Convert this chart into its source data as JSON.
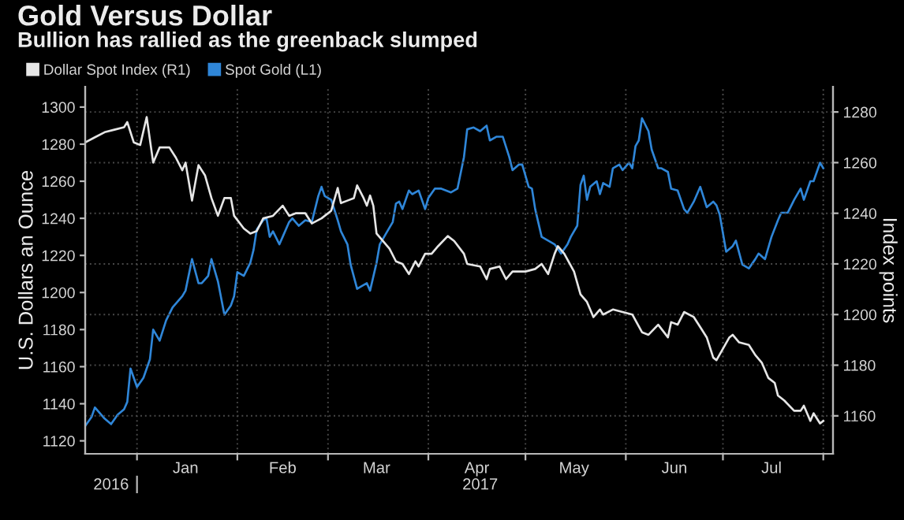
{
  "chart_data": {
    "type": "line",
    "title": "Gold Versus Dollar",
    "subtitle": "Bullion has rallied as the greenback slumped",
    "ylabel": "U.S. Dollars an Ounce",
    "y2label": "Index points",
    "legend": "top left",
    "grid": true,
    "xlim": [
      "2016-12-16",
      "2017-08-04"
    ],
    "xticks": [
      {
        "value": "2017-01-01",
        "label": null
      },
      {
        "value": "2017-01-16",
        "label": "Jan"
      },
      {
        "value": "2017-02-01",
        "label": null
      },
      {
        "value": "2017-02-15",
        "label": "Feb"
      },
      {
        "value": "2017-03-01",
        "label": null
      },
      {
        "value": "2017-03-16",
        "label": "Mar"
      },
      {
        "value": "2017-04-01",
        "label": null
      },
      {
        "value": "2017-04-16",
        "label": "Apr"
      },
      {
        "value": "2017-05-01",
        "label": null
      },
      {
        "value": "2017-05-16",
        "label": "May"
      },
      {
        "value": "2017-06-01",
        "label": null
      },
      {
        "value": "2017-06-16",
        "label": "Jun"
      },
      {
        "value": "2017-07-01",
        "label": null
      },
      {
        "value": "2017-07-16",
        "label": "Jul"
      },
      {
        "value": "2017-08-01",
        "label": null
      }
    ],
    "x2lim": [
      "2016-12-16",
      "2017-08-04"
    ],
    "x2ticks": [
      {
        "value": "2016-12-24",
        "label": "2016"
      },
      {
        "value": "2017-01-01",
        "label": null
      },
      {
        "value": "2017-04-17",
        "label": "2017"
      }
    ],
    "ylim": [
      1113,
      1311
    ],
    "yticks": [
      1120,
      1140,
      1160,
      1180,
      1200,
      1220,
      1240,
      1260,
      1280,
      1300
    ],
    "y2lim": [
      1145,
      1290
    ],
    "y2ticks": [
      1160,
      1180,
      1200,
      1220,
      1240,
      1260,
      1280
    ],
    "series": [
      {
        "name": "Dollar Spot Index (R1)",
        "color": "#e6e6e6",
        "axis": "y2",
        "x": [
          "2016-12-16",
          "2016-12-19",
          "2016-12-22",
          "2016-12-25",
          "2016-12-28",
          "2016-12-29",
          "2016-12-31",
          "2017-01-02",
          "2017-01-04",
          "2017-01-06",
          "2017-01-08",
          "2017-01-11",
          "2017-01-13",
          "2017-01-15",
          "2017-01-16",
          "2017-01-18",
          "2017-01-20",
          "2017-01-22",
          "2017-01-24",
          "2017-01-26",
          "2017-01-28",
          "2017-01-30",
          "2017-01-31",
          "2017-02-03",
          "2017-02-05",
          "2017-02-07",
          "2017-02-09",
          "2017-02-12",
          "2017-02-15",
          "2017-02-17",
          "2017-02-19",
          "2017-02-22",
          "2017-02-24",
          "2017-02-27",
          "2017-03-02",
          "2017-03-04",
          "2017-03-05",
          "2017-03-07",
          "2017-03-09",
          "2017-03-10",
          "2017-03-12",
          "2017-03-13",
          "2017-03-14",
          "2017-03-15",
          "2017-03-16",
          "2017-03-20",
          "2017-03-22",
          "2017-03-24",
          "2017-03-26",
          "2017-03-28",
          "2017-03-29",
          "2017-03-31",
          "2017-04-02",
          "2017-04-04",
          "2017-04-07",
          "2017-04-09",
          "2017-04-12",
          "2017-04-13",
          "2017-04-17",
          "2017-04-19",
          "2017-04-20",
          "2017-04-23",
          "2017-04-25",
          "2017-04-27",
          "2017-05-01",
          "2017-05-04",
          "2017-05-06",
          "2017-05-08",
          "2017-05-10",
          "2017-05-11",
          "2017-05-13",
          "2017-05-16",
          "2017-05-18",
          "2017-05-20",
          "2017-05-22",
          "2017-05-24",
          "2017-05-25",
          "2017-05-28",
          "2017-05-31",
          "2017-06-03",
          "2017-06-06",
          "2017-06-08",
          "2017-06-11",
          "2017-06-14",
          "2017-06-15",
          "2017-06-17",
          "2017-06-19",
          "2017-06-22",
          "2017-06-24",
          "2017-06-26",
          "2017-06-28",
          "2017-06-29",
          "2017-07-03",
          "2017-07-04",
          "2017-07-06",
          "2017-07-09",
          "2017-07-11",
          "2017-07-13",
          "2017-07-15",
          "2017-07-17",
          "2017-07-18",
          "2017-07-20",
          "2017-07-23",
          "2017-07-25",
          "2017-07-26",
          "2017-07-28",
          "2017-07-29",
          "2017-07-31",
          "2017-08-01"
        ],
        "values": [
          1268,
          1270,
          1272,
          1273,
          1274,
          1276,
          1268,
          1267,
          1278,
          1260,
          1266,
          1266,
          1262,
          1257,
          1260,
          1245,
          1259,
          1255,
          1246,
          1239,
          1246,
          1246,
          1239,
          1234,
          1232,
          1233,
          1238,
          1239,
          1243,
          1239,
          1240,
          1240,
          1236,
          1238,
          1241,
          1250,
          1244,
          1245,
          1246,
          1251,
          1246,
          1243,
          1247,
          1243,
          1232,
          1226,
          1221,
          1220,
          1216,
          1221,
          1219,
          1224,
          1224,
          1227,
          1231,
          1229,
          1224,
          1220,
          1219,
          1214,
          1218,
          1219,
          1214,
          1217,
          1217,
          1218,
          1220,
          1216,
          1224,
          1227,
          1224,
          1217,
          1208,
          1205,
          1199,
          1202,
          1200,
          1202,
          1201,
          1200,
          1193,
          1192,
          1196,
          1191,
          1197,
          1196,
          1201,
          1199,
          1195,
          1191,
          1183,
          1182,
          1191,
          1192,
          1189,
          1188,
          1184,
          1181,
          1175,
          1173,
          1168,
          1166,
          1162,
          1162,
          1164,
          1158,
          1161,
          1157,
          1158
        ]
      },
      {
        "name": "Spot Gold (L1)",
        "color": "#2f86d8",
        "x": [
          "2016-12-16",
          "2016-12-18",
          "2016-12-19",
          "2016-12-21",
          "2016-12-22",
          "2016-12-24",
          "2016-12-26",
          "2016-12-28",
          "2016-12-29",
          "2016-12-30",
          "2017-01-01",
          "2017-01-03",
          "2017-01-05",
          "2017-01-06",
          "2017-01-08",
          "2017-01-10",
          "2017-01-12",
          "2017-01-15",
          "2017-01-16",
          "2017-01-18",
          "2017-01-20",
          "2017-01-21",
          "2017-01-23",
          "2017-01-24",
          "2017-01-26",
          "2017-01-28",
          "2017-01-30",
          "2017-01-31",
          "2017-02-01",
          "2017-02-03",
          "2017-02-05",
          "2017-02-06",
          "2017-02-07",
          "2017-02-09",
          "2017-02-10",
          "2017-02-11",
          "2017-02-12",
          "2017-02-14",
          "2017-02-15",
          "2017-02-17",
          "2017-02-18",
          "2017-02-20",
          "2017-02-22",
          "2017-02-24",
          "2017-02-26",
          "2017-02-27",
          "2017-02-28",
          "2017-03-02",
          "2017-03-04",
          "2017-03-05",
          "2017-03-07",
          "2017-03-08",
          "2017-03-10",
          "2017-03-11",
          "2017-03-13",
          "2017-03-14",
          "2017-03-16",
          "2017-03-17",
          "2017-03-19",
          "2017-03-21",
          "2017-03-22",
          "2017-03-23",
          "2017-03-24",
          "2017-03-26",
          "2017-03-27",
          "2017-03-29",
          "2017-03-31",
          "2017-04-01",
          "2017-04-03",
          "2017-04-05",
          "2017-04-08",
          "2017-04-10",
          "2017-04-12",
          "2017-04-13",
          "2017-04-15",
          "2017-04-17",
          "2017-04-19",
          "2017-04-20",
          "2017-04-22",
          "2017-04-24",
          "2017-04-26",
          "2017-04-27",
          "2017-04-29",
          "2017-04-30",
          "2017-05-02",
          "2017-05-03",
          "2017-05-04",
          "2017-05-06",
          "2017-05-08",
          "2017-05-10",
          "2017-05-12",
          "2017-05-14",
          "2017-05-15",
          "2017-05-17",
          "2017-05-18",
          "2017-05-19",
          "2017-05-20",
          "2017-05-21",
          "2017-05-23",
          "2017-05-24",
          "2017-05-25",
          "2017-05-27",
          "2017-05-28",
          "2017-05-30",
          "2017-05-31",
          "2017-06-02",
          "2017-06-03",
          "2017-06-04",
          "2017-06-05",
          "2017-06-06",
          "2017-06-08",
          "2017-06-09",
          "2017-06-11",
          "2017-06-12",
          "2017-06-14",
          "2017-06-15",
          "2017-06-17",
          "2017-06-19",
          "2017-06-20",
          "2017-06-22",
          "2017-06-24",
          "2017-06-26",
          "2017-06-28",
          "2017-06-29",
          "2017-06-30",
          "2017-07-02",
          "2017-07-04",
          "2017-07-05",
          "2017-07-07",
          "2017-07-09",
          "2017-07-11",
          "2017-07-12",
          "2017-07-14",
          "2017-07-16",
          "2017-07-18",
          "2017-07-19",
          "2017-07-21",
          "2017-07-23",
          "2017-07-25",
          "2017-07-26",
          "2017-07-28",
          "2017-07-29",
          "2017-07-31",
          "2017-08-01"
        ],
        "values": [
          1128,
          1133,
          1138,
          1134,
          1132,
          1129,
          1134,
          1137,
          1141,
          1159,
          1149,
          1154,
          1164,
          1180,
          1174,
          1185,
          1192,
          1198,
          1201,
          1218,
          1205,
          1205,
          1209,
          1218,
          1206,
          1188,
          1193,
          1198,
          1211,
          1209,
          1216,
          1223,
          1234,
          1239,
          1240,
          1230,
          1233,
          1226,
          1230,
          1238,
          1240,
          1236,
          1239,
          1238,
          1252,
          1257,
          1252,
          1250,
          1239,
          1233,
          1226,
          1215,
          1202,
          1203,
          1205,
          1201,
          1216,
          1226,
          1232,
          1238,
          1248,
          1249,
          1245,
          1255,
          1253,
          1255,
          1245,
          1251,
          1256,
          1256,
          1254,
          1256,
          1273,
          1288,
          1289,
          1287,
          1290,
          1282,
          1284,
          1284,
          1273,
          1266,
          1269,
          1269,
          1257,
          1256,
          1245,
          1230,
          1228,
          1226,
          1221,
          1226,
          1230,
          1236,
          1258,
          1263,
          1250,
          1257,
          1260,
          1253,
          1259,
          1257,
          1267,
          1269,
          1266,
          1270,
          1267,
          1279,
          1282,
          1294,
          1287,
          1277,
          1267,
          1267,
          1265,
          1256,
          1255,
          1245,
          1243,
          1249,
          1257,
          1246,
          1249,
          1247,
          1242,
          1222,
          1225,
          1228,
          1215,
          1213,
          1218,
          1221,
          1218,
          1230,
          1239,
          1243,
          1243,
          1250,
          1256,
          1250,
          1260,
          1260,
          1270,
          1267
        ]
      }
    ]
  }
}
